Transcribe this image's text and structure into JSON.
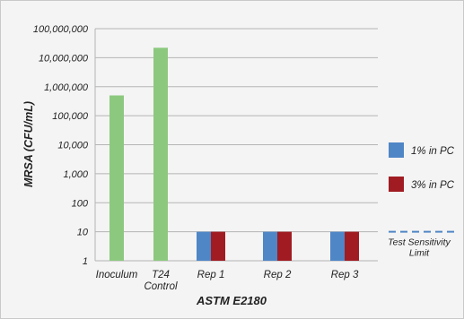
{
  "chart_data": {
    "type": "bar",
    "title": "",
    "xlabel": "ASTM E2180",
    "ylabel": "MRSA (CFU/mL)",
    "y_scale": "log10",
    "ylim": [
      1,
      100000000
    ],
    "grid": true,
    "legend_position": "right",
    "y_ticks": [
      "1",
      "10",
      "100",
      "1,000",
      "10,000",
      "100,000",
      "1,000,000",
      "10,000,000",
      "100,000,000"
    ],
    "categories": [
      "Inoculum",
      "T24 Control",
      "Rep 1",
      "Rep 2",
      "Rep 3"
    ],
    "category_label_lines": [
      [
        "Inoculum"
      ],
      [
        "T24",
        "Control"
      ],
      [
        "Rep 1"
      ],
      [
        "Rep 2"
      ],
      [
        "Rep 3"
      ]
    ],
    "series": [
      {
        "name": "",
        "color": "#8cc97e",
        "values": [
          500000,
          22000000,
          null,
          null,
          null
        ]
      },
      {
        "name": "1% in PC",
        "color": "#4f86c6",
        "values": [
          null,
          null,
          10,
          10,
          10
        ]
      },
      {
        "name": "3% in PC",
        "color": "#a01c22",
        "values": [
          null,
          null,
          10,
          10,
          10
        ]
      }
    ],
    "reference_line": {
      "name": "Test Sensitivity Limit",
      "name_lines": [
        "Test Sensitivity",
        "Limit"
      ],
      "value": 10,
      "color": "#4f86c6",
      "style": "dashed"
    }
  }
}
